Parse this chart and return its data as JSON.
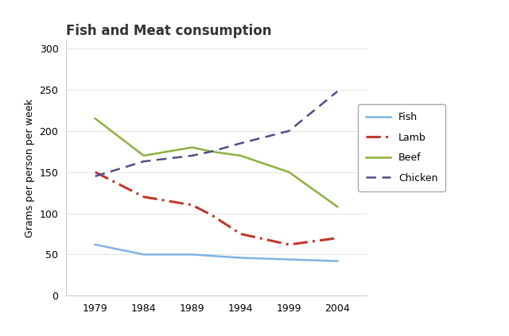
{
  "title": "Fish and Meat consumption",
  "ylabel": "Grams per person per week",
  "fish": {
    "label": "Fish",
    "color": "#7eb4e2",
    "linestyle": "-",
    "values_years": [
      1979,
      1984,
      1989,
      1994,
      1999,
      2004
    ],
    "values": [
      62,
      50,
      50,
      46,
      44,
      42
    ]
  },
  "lamb": {
    "label": "Lamb",
    "color": "#c0392b",
    "linestyle": "-.",
    "values_years": [
      1979,
      1984,
      1989,
      1991,
      1994,
      1999,
      2004
    ],
    "values": [
      150,
      120,
      110,
      98,
      75,
      62,
      70
    ]
  },
  "beef": {
    "label": "Beef",
    "color": "#8db040",
    "linestyle": "-",
    "values_years": [
      1979,
      1984,
      1989,
      1991,
      1994,
      1999,
      2004
    ],
    "values": [
      215,
      170,
      180,
      175,
      170,
      150,
      108
    ]
  },
  "chicken": {
    "label": "Chicken",
    "color": "#4c4f8a",
    "linestyle": "--",
    "values_years": [
      1979,
      1984,
      1989,
      1991,
      1994,
      1999,
      2004
    ],
    "values": [
      145,
      163,
      170,
      175,
      185,
      200,
      248
    ]
  },
  "xlim": [
    1976,
    2007
  ],
  "ylim": [
    0,
    310
  ],
  "yticks": [
    0,
    50,
    100,
    150,
    200,
    250,
    300
  ],
  "xticks": [
    1979,
    1984,
    1989,
    1994,
    1999,
    2004
  ],
  "bg_color": "#ffffff",
  "title_fontsize": 12,
  "axis_label_fontsize": 9,
  "tick_fontsize": 9,
  "legend_fontsize": 9
}
